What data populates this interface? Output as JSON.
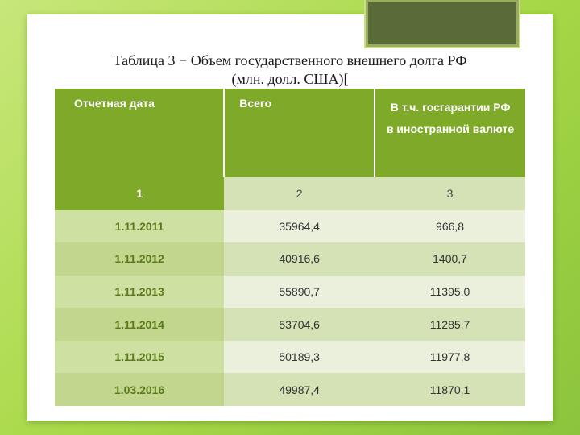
{
  "slide": {
    "title_line1": "Таблица 3 −  Объем государственного внешнего долга РФ",
    "title_line2": "(млн. долл. США)",
    "title_bracket": "["
  },
  "table": {
    "type": "table",
    "background_color": "#ffffff",
    "header_bg": "#7fa928",
    "header_text_color": "#ffffff",
    "row_odd_bg": "#eaf0db",
    "row_even_bg": "#d4e2b6",
    "first_col_odd_bg": "#cfe0a3",
    "first_col_even_bg": "#c2d68e",
    "columns": [
      {
        "label": "Отчетная дата",
        "width_pct": 36,
        "align": "left"
      },
      {
        "label": "Всего",
        "width_pct": 32,
        "align": "center"
      },
      {
        "label_line1": "В т.ч. госгарантии РФ",
        "label_line2": "в иностранной валюте",
        "width_pct": 32,
        "align": "center"
      }
    ],
    "number_row": [
      "1",
      "2",
      "3"
    ],
    "rows": [
      [
        "1.11.2011",
        "35964,4",
        "966,8"
      ],
      [
        "1.11.2012",
        "40916,6",
        "1400,7"
      ],
      [
        "1.11.2013",
        "55890,7",
        "11395,0"
      ],
      [
        "1.11.2014",
        "53704,6",
        "11285,7"
      ],
      [
        "1.11.2015",
        "50189,3",
        "11977,8"
      ],
      [
        "1.03.2016",
        "49987,4",
        "11870,1"
      ]
    ]
  },
  "style": {
    "page_bg_gradient": [
      "#c8e67a",
      "#a8d948",
      "#8cc43c"
    ],
    "accent_block_bg": "#5a6b3a",
    "accent_block_border": "#9aad5f",
    "title_fontsize": 18,
    "cell_fontsize": 14
  }
}
